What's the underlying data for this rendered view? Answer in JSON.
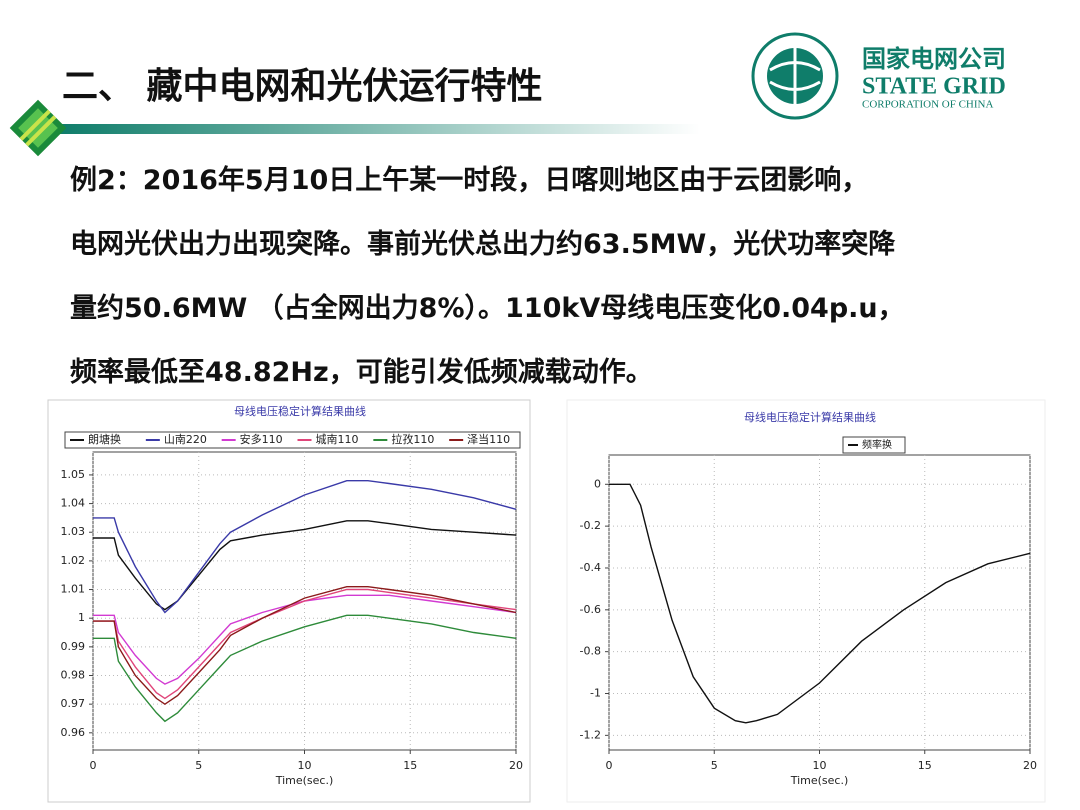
{
  "slide_title": "二、 藏中电网和光伏运行特性",
  "logo": {
    "cn": "国家电网公司",
    "en1": "STATE GRID",
    "en2": "CORPORATION OF CHINA"
  },
  "paragraph": [
    "例2：2016年5月10日上午某一时段，日喀则地区由于云团影响，",
    "电网光伏出力出现突降。事前光伏总出力约63.5MW，光伏功率突降",
    "量约50.6MW （占全网出力8%）。110kV母线电压变化0.04p.u，",
    "频率最低至48.82Hz，可能引发低频减载动作。"
  ],
  "chart_data": [
    {
      "type": "line",
      "title": "母线电压稳定计算结果曲线",
      "x_label": "Time(sec.)",
      "x": [
        0,
        1,
        1.2,
        2,
        3,
        3.4,
        4,
        5,
        6,
        6.5,
        8,
        10,
        12,
        13,
        14,
        16,
        18,
        20
      ],
      "xlim": [
        0,
        20
      ],
      "xticks": [
        0,
        5,
        10,
        15,
        20
      ],
      "ylim": [
        0.954,
        1.058
      ],
      "yticks": [
        0.96,
        0.97,
        0.98,
        0.99,
        1,
        1.01,
        1.02,
        1.03,
        1.04,
        1.05
      ],
      "grid": true,
      "series": [
        {
          "name": "朗塘换",
          "color": "#111111",
          "values": [
            1.028,
            1.028,
            1.022,
            1.014,
            1.005,
            1.003,
            1.006,
            1.015,
            1.024,
            1.027,
            1.029,
            1.031,
            1.034,
            1.034,
            1.033,
            1.031,
            1.03,
            1.029
          ]
        },
        {
          "name": "山南220",
          "color": "#3a3aa8",
          "values": [
            1.035,
            1.035,
            1.03,
            1.018,
            1.006,
            1.002,
            1.006,
            1.016,
            1.026,
            1.03,
            1.036,
            1.043,
            1.048,
            1.048,
            1.047,
            1.045,
            1.042,
            1.038
          ]
        },
        {
          "name": "安多110",
          "color": "#d23ad2",
          "values": [
            1.001,
            1.001,
            0.995,
            0.987,
            0.979,
            0.977,
            0.979,
            0.986,
            0.994,
            0.998,
            1.002,
            1.006,
            1.008,
            1.008,
            1.008,
            1.006,
            1.004,
            1.002
          ]
        },
        {
          "name": "城南110",
          "color": "#e0457a",
          "values": [
            0.999,
            0.999,
            0.992,
            0.983,
            0.974,
            0.972,
            0.975,
            0.983,
            0.991,
            0.995,
            1.0,
            1.006,
            1.01,
            1.01,
            1.009,
            1.007,
            1.005,
            1.003
          ]
        },
        {
          "name": "拉孜110",
          "color": "#2e8b3a",
          "values": [
            0.993,
            0.993,
            0.985,
            0.976,
            0.967,
            0.964,
            0.967,
            0.975,
            0.983,
            0.987,
            0.992,
            0.997,
            1.001,
            1.001,
            1.0,
            0.998,
            0.995,
            0.993
          ]
        },
        {
          "name": "泽当110",
          "color": "#8b1a1a",
          "values": [
            0.999,
            0.999,
            0.99,
            0.98,
            0.972,
            0.97,
            0.973,
            0.981,
            0.989,
            0.994,
            1.0,
            1.007,
            1.011,
            1.011,
            1.01,
            1.008,
            1.005,
            1.002
          ]
        }
      ]
    },
    {
      "type": "line",
      "title": "母线电压稳定计算结果曲线",
      "x_label": "Time(sec.)",
      "x": [
        0,
        1,
        1.5,
        2,
        3,
        4,
        5,
        6,
        6.5,
        7,
        8,
        10,
        12,
        14,
        16,
        18,
        20
      ],
      "xlim": [
        0,
        20
      ],
      "xticks": [
        0,
        5,
        10,
        15,
        20
      ],
      "ylim": [
        -1.27,
        0.14
      ],
      "yticks": [
        -1.2,
        -1,
        -0.8,
        -0.6,
        -0.4,
        -0.2,
        0
      ],
      "grid": true,
      "series": [
        {
          "name": "频率换",
          "color": "#111111",
          "values": [
            0,
            0,
            -0.1,
            -0.3,
            -0.65,
            -0.92,
            -1.07,
            -1.13,
            -1.14,
            -1.13,
            -1.1,
            -0.95,
            -0.75,
            -0.6,
            -0.47,
            -0.38,
            -0.33
          ]
        }
      ]
    }
  ]
}
